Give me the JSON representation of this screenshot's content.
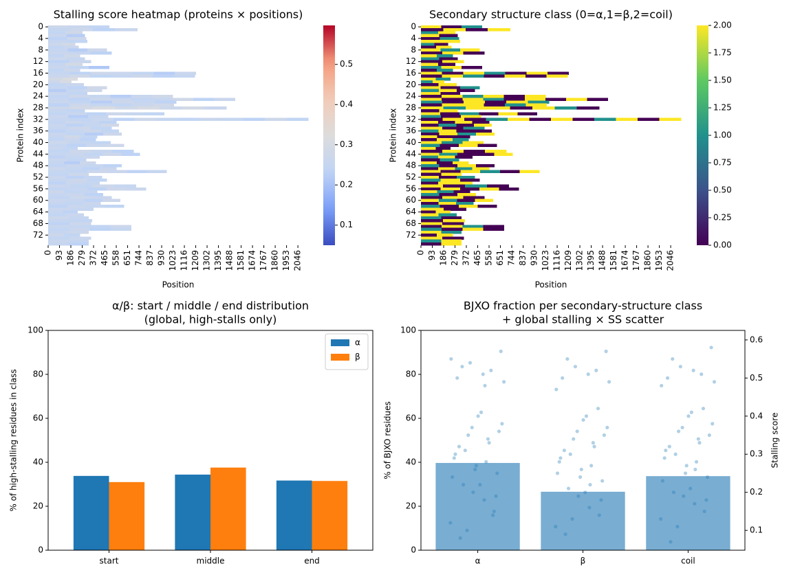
{
  "chart_data": [
    {
      "type": "heatmap",
      "title": "Stalling score heatmap (proteins × positions)",
      "xlabel": "Position",
      "ylabel": "Protein index",
      "cmap": "coolwarm",
      "clim": [
        0.05,
        0.597
      ],
      "cticks": [
        0.1,
        0.2,
        0.3,
        0.4,
        0.5
      ],
      "xlim": [
        0,
        2130
      ],
      "xticks": [
        0,
        93,
        186,
        279,
        372,
        465,
        558,
        651,
        744,
        837,
        930,
        1023,
        1116,
        1209,
        1302,
        1395,
        1488,
        1581,
        1674,
        1767,
        1860,
        1953,
        2046
      ],
      "yticks": [
        0,
        4,
        8,
        12,
        16,
        20,
        24,
        28,
        32,
        36,
        40,
        44,
        48,
        52,
        56,
        60,
        64,
        68,
        72
      ],
      "lengths": [
        500,
        730,
        280,
        300,
        310,
        320,
        220,
        250,
        480,
        520,
        260,
        300,
        350,
        280,
        500,
        260,
        1210,
        1200,
        240,
        190,
        290,
        480,
        440,
        320,
        1020,
        1530,
        1050,
        1030,
        1460,
        300,
        950,
        490,
        2130,
        560,
        580,
        520,
        580,
        600,
        400,
        390,
        510,
        620,
        240,
        700,
        750,
        420,
        310,
        390,
        600,
        560,
        970,
        330,
        440,
        480,
        420,
        720,
        800,
        400,
        450,
        520,
        590,
        430,
        620,
        370,
        240,
        290,
        330,
        360,
        350,
        680,
        680,
        330,
        260,
        350,
        330,
        330
      ],
      "rows": [
        [
          0.27,
          0.26,
          0.24
        ],
        [
          0.25,
          0.27,
          0.23,
          0.26
        ],
        [
          0.24,
          0.28
        ],
        [
          0.26,
          0.22
        ],
        [
          0.23,
          0.27
        ],
        [
          0.25,
          0.24
        ],
        [
          0.27,
          0.29
        ],
        [
          0.24,
          0.26
        ],
        [
          0.25,
          0.22,
          0.27
        ],
        [
          0.26,
          0.25,
          0.23
        ],
        [
          0.24,
          0.28
        ],
        [
          0.27,
          0.25
        ],
        [
          0.23,
          0.26
        ],
        [
          0.25,
          0.29
        ],
        [
          0.26,
          0.24,
          0.21
        ],
        [
          0.24,
          0.27
        ],
        [
          0.25,
          0.23,
          0.27,
          0.26,
          0.24,
          0.22,
          0.26
        ],
        [
          0.26,
          0.28,
          0.24,
          0.25,
          0.27,
          0.23,
          0.25
        ],
        [
          0.29,
          0.31
        ],
        [
          0.27,
          0.3
        ],
        [
          0.24,
          0.26
        ],
        [
          0.25,
          0.23,
          0.28
        ],
        [
          0.22,
          0.25,
          0.27
        ],
        [
          0.26,
          0.24
        ],
        [
          0.24,
          0.27,
          0.25,
          0.22,
          0.26,
          0.28
        ],
        [
          0.25,
          0.23,
          0.27,
          0.26,
          0.24,
          0.25,
          0.28,
          0.23,
          0.26
        ],
        [
          0.26,
          0.24,
          0.22,
          0.27,
          0.25,
          0.23
        ],
        [
          0.23,
          0.27,
          0.25,
          0.24,
          0.26,
          0.28
        ],
        [
          0.27,
          0.29,
          0.31,
          0.28,
          0.3,
          0.27,
          0.29,
          0.26
        ],
        [
          0.25,
          0.24
        ],
        [
          0.24,
          0.26,
          0.23,
          0.27,
          0.25,
          0.24
        ],
        [
          0.26,
          0.22,
          0.25
        ],
        [
          0.25,
          0.24,
          0.26,
          0.23,
          0.27,
          0.25,
          0.24,
          0.26,
          0.25,
          0.23,
          0.27,
          0.24
        ],
        [
          0.24,
          0.27,
          0.25,
          0.23
        ],
        [
          0.26,
          0.23,
          0.25,
          0.28
        ],
        [
          0.25,
          0.27,
          0.24
        ],
        [
          0.23,
          0.25,
          0.27,
          0.24
        ],
        [
          0.26,
          0.24,
          0.22,
          0.27
        ],
        [
          0.25,
          0.28,
          0.24
        ],
        [
          0.24,
          0.26,
          0.23
        ],
        [
          0.27,
          0.25,
          0.24
        ],
        [
          0.25,
          0.23,
          0.26,
          0.27
        ],
        [
          0.26,
          0.24
        ],
        [
          0.24,
          0.27,
          0.25,
          0.23
        ],
        [
          0.25,
          0.26,
          0.24,
          0.27,
          0.23
        ],
        [
          0.23,
          0.25,
          0.26
        ],
        [
          0.26,
          0.24
        ],
        [
          0.25,
          0.22,
          0.27
        ],
        [
          0.24,
          0.26,
          0.25,
          0.23
        ],
        [
          0.27,
          0.25,
          0.23,
          0.26
        ],
        [
          0.25,
          0.24,
          0.27,
          0.26,
          0.23,
          0.25
        ],
        [
          0.24,
          0.27
        ],
        [
          0.26,
          0.23,
          0.25
        ],
        [
          0.25,
          0.27,
          0.24
        ],
        [
          0.23,
          0.26,
          0.25
        ],
        [
          0.26,
          0.24,
          0.27,
          0.25
        ],
        [
          0.24,
          0.25,
          0.23,
          0.27,
          0.26
        ],
        [
          0.27,
          0.24,
          0.25
        ],
        [
          0.25,
          0.26,
          0.23
        ],
        [
          0.24,
          0.27,
          0.26
        ],
        [
          0.26,
          0.25,
          0.23,
          0.27
        ],
        [
          0.25,
          0.24,
          0.26
        ],
        [
          0.23,
          0.26,
          0.25,
          0.24
        ],
        [
          0.26,
          0.25
        ],
        [
          0.25,
          0.23
        ],
        [
          0.24,
          0.26
        ],
        [
          0.27,
          0.25
        ],
        [
          0.25,
          0.24
        ],
        [
          0.23,
          0.27
        ],
        [
          0.26,
          0.25,
          0.24,
          0.27
        ],
        [
          0.24,
          0.26,
          0.23,
          0.25
        ],
        [
          0.25,
          0.27
        ],
        [
          0.27,
          0.24
        ],
        [
          0.24,
          0.26
        ],
        [
          0.26,
          0.25
        ],
        [
          0.25,
          0.23
        ]
      ]
    },
    {
      "type": "heatmap",
      "title": "Secondary structure class (0=α,1=β,2=coil)",
      "xlabel": "Position",
      "ylabel": "Protein index",
      "cmap": "viridis",
      "clim": [
        0,
        2
      ],
      "cticks": [
        {
          "value": 0,
          "label": "0.00"
        },
        {
          "value": 0.25,
          "label": "0.25"
        },
        {
          "value": 0.5,
          "label": "0.50"
        },
        {
          "value": 0.75,
          "label": "0.75"
        },
        {
          "value": 1,
          "label": "1.00"
        },
        {
          "value": 1.25,
          "label": "1.25"
        },
        {
          "value": 1.5,
          "label": "1.50"
        },
        {
          "value": 1.75,
          "label": "1.75"
        },
        {
          "value": 2,
          "label": "2.00"
        }
      ],
      "xlim": [
        0,
        2130
      ],
      "xticks": [
        0,
        93,
        186,
        279,
        372,
        465,
        558,
        651,
        744,
        837,
        930,
        1023,
        1116,
        1209,
        1302,
        1395,
        1488,
        1581,
        1674,
        1767,
        1860,
        1953,
        2046
      ],
      "yticks": [
        0,
        4,
        8,
        12,
        16,
        20,
        24,
        28,
        32,
        36,
        40,
        44,
        48,
        52,
        56,
        60,
        64,
        68,
        72
      ],
      "lengths": [
        500,
        730,
        280,
        300,
        310,
        320,
        220,
        250,
        480,
        520,
        260,
        300,
        350,
        280,
        500,
        260,
        1210,
        1200,
        240,
        190,
        290,
        480,
        440,
        320,
        1020,
        1530,
        1050,
        1030,
        1460,
        300,
        950,
        490,
        2130,
        560,
        580,
        520,
        580,
        600,
        400,
        390,
        510,
        620,
        240,
        700,
        750,
        420,
        310,
        390,
        600,
        560,
        970,
        330,
        440,
        480,
        420,
        720,
        800,
        400,
        450,
        520,
        590,
        430,
        620,
        370,
        240,
        290,
        330,
        360,
        350,
        680,
        680,
        330,
        260,
        350,
        330,
        330
      ],
      "rows": [
        [
          2,
          0,
          1
        ],
        [
          0,
          2,
          0,
          2
        ],
        [
          1,
          2
        ],
        [
          2,
          0
        ],
        [
          0,
          1
        ],
        [
          2,
          2
        ],
        [
          1,
          0
        ],
        [
          0,
          2
        ],
        [
          2,
          1,
          2
        ],
        [
          0,
          2,
          0
        ],
        [
          2,
          1
        ],
        [
          1,
          0
        ],
        [
          0,
          2
        ],
        [
          2,
          0
        ],
        [
          1,
          2,
          0
        ],
        [
          0,
          1
        ],
        [
          2,
          0,
          2,
          1,
          0,
          2,
          0
        ],
        [
          0,
          2,
          1,
          0,
          2,
          0,
          2
        ],
        [
          2,
          1
        ],
        [
          1,
          2
        ],
        [
          0,
          2
        ],
        [
          2,
          0,
          1
        ],
        [
          1,
          2,
          0
        ],
        [
          2,
          0
        ],
        [
          0,
          2,
          1,
          2,
          0,
          2
        ],
        [
          2,
          0,
          2,
          1,
          0,
          2,
          0,
          2,
          0
        ],
        [
          1,
          0,
          2,
          0,
          2,
          1
        ],
        [
          0,
          2,
          2,
          0,
          1,
          2
        ],
        [
          2,
          1,
          2,
          2,
          0,
          2,
          1,
          0
        ],
        [
          0,
          2
        ],
        [
          2,
          0,
          1,
          0,
          2,
          0
        ],
        [
          1,
          0,
          2
        ],
        [
          0,
          2,
          0,
          1,
          2,
          0,
          2,
          0,
          1,
          2,
          0,
          2
        ],
        [
          2,
          0,
          2,
          0
        ],
        [
          0,
          1,
          0,
          2
        ],
        [
          2,
          0,
          1
        ],
        [
          1,
          2,
          0,
          0
        ],
        [
          0,
          2,
          1,
          2
        ],
        [
          2,
          0,
          0
        ],
        [
          0,
          2,
          1
        ],
        [
          2,
          1,
          2
        ],
        [
          1,
          0,
          2,
          0
        ],
        [
          2,
          0
        ],
        [
          0,
          2,
          0,
          2
        ],
        [
          2,
          1,
          0,
          0,
          2
        ],
        [
          1,
          2,
          0
        ],
        [
          0,
          1
        ],
        [
          2,
          0,
          2
        ],
        [
          1,
          0,
          2,
          0
        ],
        [
          0,
          2,
          1,
          2
        ],
        [
          2,
          0,
          2,
          1,
          0,
          2
        ],
        [
          0,
          2
        ],
        [
          2,
          0,
          1
        ],
        [
          1,
          2,
          0
        ],
        [
          0,
          2,
          2
        ],
        [
          2,
          0,
          1,
          0
        ],
        [
          0,
          2,
          0,
          2,
          0
        ],
        [
          2,
          1,
          0
        ],
        [
          1,
          0,
          2
        ],
        [
          0,
          2,
          0
        ],
        [
          2,
          1,
          0,
          2
        ],
        [
          0,
          2,
          1
        ],
        [
          1,
          0,
          2,
          0
        ],
        [
          2,
          0
        ],
        [
          0,
          2
        ],
        [
          2,
          1
        ],
        [
          1,
          0
        ],
        [
          0,
          2
        ],
        [
          2,
          0
        ],
        [
          0,
          2,
          1,
          0
        ],
        [
          1,
          0,
          2,
          0
        ],
        [
          2,
          1
        ],
        [
          0,
          2
        ],
        [
          2,
          0
        ],
        [
          1,
          2
        ],
        [
          0,
          2
        ]
      ]
    },
    {
      "type": "grouped_bar",
      "title": [
        "α/β: start / middle / end distribution",
        "(global, high-stalls only)"
      ],
      "ylabel": "% of high-stalling residues in class",
      "categories": [
        "start",
        "middle",
        "end"
      ],
      "ylim": [
        0,
        100
      ],
      "yticks": [
        0,
        20,
        40,
        60,
        80,
        100
      ],
      "legend": "upper right",
      "series": [
        {
          "name": "α",
          "color": "#1f77b4",
          "values": [
            33.8,
            34.4,
            31.7
          ]
        },
        {
          "name": "β",
          "color": "#ff7f0e",
          "values": [
            31.0,
            37.6,
            31.5
          ]
        }
      ]
    },
    {
      "type": "bar_scatter",
      "title": [
        "BJXO fraction per secondary-structure class",
        "+ global stalling × SS scatter"
      ],
      "ylabel": "% of BJXO residues",
      "y2label": "Stalling score",
      "categories": [
        "α",
        "β",
        "coil"
      ],
      "ylim": [
        0,
        100
      ],
      "yticks": [
        0,
        20,
        40,
        60,
        80,
        100
      ],
      "y2lim": [
        0.048,
        0.625
      ],
      "y2ticks": [
        0.1,
        0.2,
        0.3,
        0.4,
        0.5,
        0.6
      ],
      "series": [
        {
          "type": "bar",
          "color": "#1f77b4",
          "alpha": 0.6,
          "values": [
            39.7,
            26.6,
            33.7
          ]
        },
        {
          "type": "scatter",
          "axis": "y2",
          "color": "#1f77b4",
          "alpha": 0.35,
          "values": [
            [
              0.12,
              0.18,
              0.22,
              0.25,
              0.27,
              0.3,
              0.33,
              0.35,
              0.38,
              0.41,
              0.08,
              0.15,
              0.2,
              0.24,
              0.28,
              0.31,
              0.36,
              0.4,
              0.5,
              0.52,
              0.54,
              0.49,
              0.51,
              0.53,
              0.19,
              0.26,
              0.29,
              0.34,
              0.1,
              0.57,
              0.22,
              0.32,
              0.14,
              0.37,
              0.55,
              0.48
            ],
            [
              0.11,
              0.16,
              0.21,
              0.23,
              0.26,
              0.29,
              0.32,
              0.34,
              0.37,
              0.4,
              0.09,
              0.14,
              0.19,
              0.25,
              0.27,
              0.3,
              0.35,
              0.39,
              0.5,
              0.52,
              0.53,
              0.49,
              0.51,
              0.55,
              0.18,
              0.24,
              0.28,
              0.33,
              0.13,
              0.57,
              0.2,
              0.31,
              0.42,
              0.36,
              0.47,
              0.22
            ],
            [
              0.13,
              0.17,
              0.2,
              0.24,
              0.27,
              0.31,
              0.33,
              0.36,
              0.38,
              0.41,
              0.07,
              0.15,
              0.19,
              0.23,
              0.28,
              0.3,
              0.35,
              0.4,
              0.5,
              0.51,
              0.53,
              0.49,
              0.52,
              0.55,
              0.18,
              0.25,
              0.29,
              0.34,
              0.11,
              0.58,
              0.21,
              0.32,
              0.42,
              0.37,
              0.48,
              0.26
            ]
          ]
        }
      ]
    }
  ]
}
